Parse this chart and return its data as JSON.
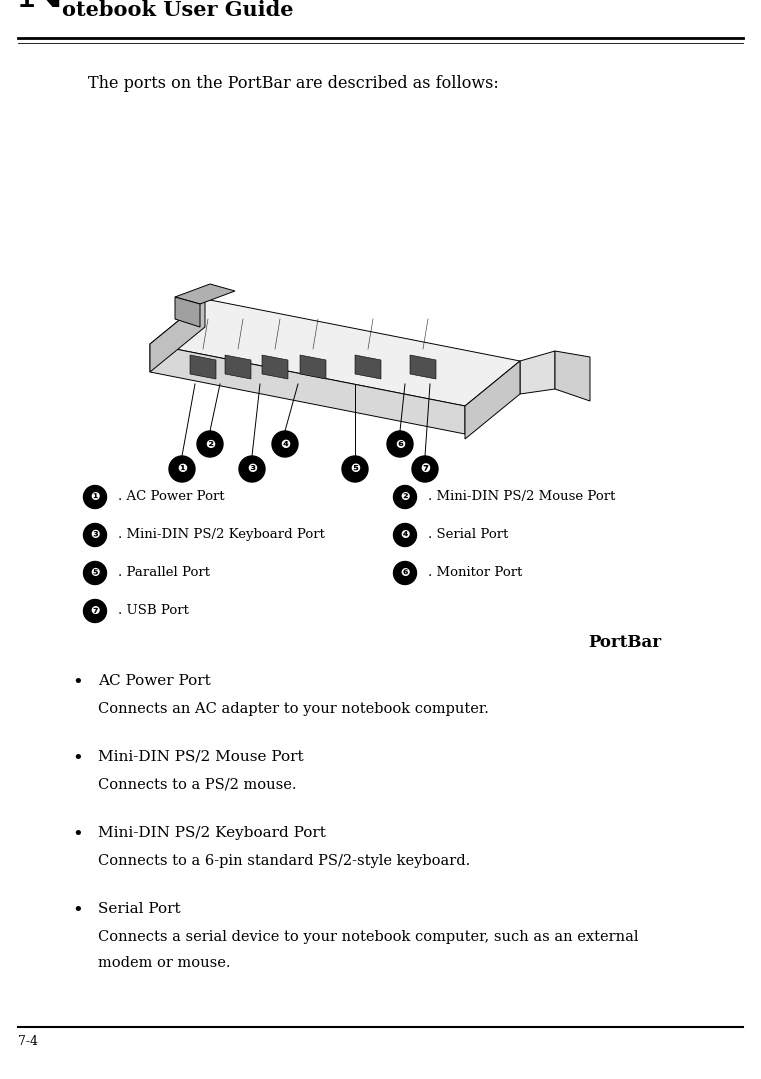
{
  "title_N": "N",
  "title_rest": "otebook User Guide",
  "page_number": "7-4",
  "intro_text": "The ports on the PortBar are described as follows:",
  "port_list_rows": [
    [
      [
        "1",
        ". AC Power Port"
      ],
      [
        "2",
        ". Mini-DIN PS/2 Mouse Port"
      ]
    ],
    [
      [
        "3",
        ". Mini-DIN PS/2 Keyboard Port"
      ],
      [
        "4",
        ". Serial Port"
      ]
    ],
    [
      [
        "5",
        ". Parallel Port"
      ],
      [
        "6",
        ". Monitor Port"
      ]
    ],
    [
      [
        "7",
        ". USB Port"
      ],
      null
    ]
  ],
  "portbar_label": "PortBar",
  "bullet_items": [
    {
      "title": "AC Power Port",
      "desc": "Connects an AC adapter to your notebook computer."
    },
    {
      "title": "Mini-DIN PS/2 Mouse Port",
      "desc": "Connects to a PS/2 mouse."
    },
    {
      "title": "Mini-DIN PS/2 Keyboard Port",
      "desc": "Connects to a 6-pin standard PS/2-style keyboard."
    },
    {
      "title": "Serial Port",
      "desc": "Connects a serial device to your notebook computer, such as an external\nmodem or mouse."
    }
  ],
  "bg_color": "#ffffff",
  "text_color": "#000000",
  "fig_width": 7.61,
  "fig_height": 10.79
}
